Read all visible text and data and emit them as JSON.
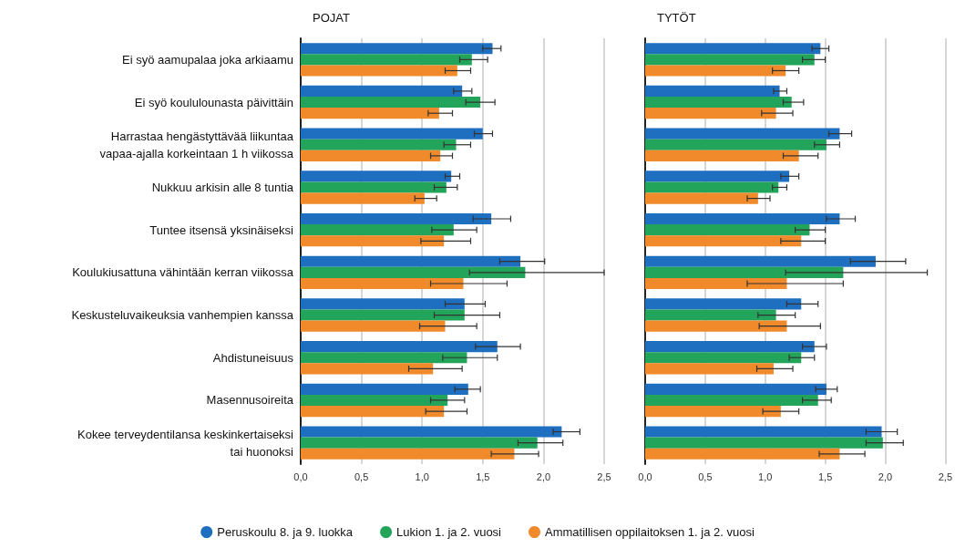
{
  "chart_data": [
    {
      "type": "bar",
      "orientation": "horizontal",
      "title": "POJAT",
      "categories": [
        "Ei syö aamupalaa joka arkiaamu",
        "Ei syö koululounasta päivittäin",
        "Harrastaa hengästyttävää liikuntaa\nvapaa-ajalla korkeintaan 1 h viikossa",
        "Nukkuu arkisin alle 8 tuntia",
        "Tuntee itsensä yksinäiseksi",
        "Koulukiusattuna vähintään kerran viikossa",
        "Keskusteluvaikeuksia vanhempien kanssa",
        "Ahdistuneisuus",
        "Masennusoireita",
        "Kokee terveydentilansa keskinkertaiseksi\ntai huonoksi"
      ],
      "series": [
        {
          "name": "Peruskoulu 8. ja 9. luokka",
          "color": "#1f6fc0",
          "values": [
            1.58,
            1.33,
            1.5,
            1.24,
            1.57,
            1.81,
            1.35,
            1.62,
            1.38,
            2.15
          ],
          "errors": [
            [
              1.5,
              1.65
            ],
            [
              1.26,
              1.41
            ],
            [
              1.43,
              1.58
            ],
            [
              1.19,
              1.31
            ],
            [
              1.42,
              1.73
            ],
            [
              1.64,
              2.01
            ],
            [
              1.19,
              1.52
            ],
            [
              1.44,
              1.81
            ],
            [
              1.27,
              1.48
            ],
            [
              2.08,
              2.3
            ]
          ]
        },
        {
          "name": "Lukion 1. ja 2. vuosi",
          "color": "#22a55a",
          "values": [
            1.41,
            1.48,
            1.28,
            1.2,
            1.26,
            1.85,
            1.35,
            1.37,
            1.21,
            1.95
          ],
          "errors": [
            [
              1.31,
              1.54
            ],
            [
              1.36,
              1.6
            ],
            [
              1.18,
              1.4
            ],
            [
              1.1,
              1.29
            ],
            [
              1.08,
              1.45
            ],
            [
              1.39,
              2.5
            ],
            [
              1.1,
              1.64
            ],
            [
              1.17,
              1.62
            ],
            [
              1.07,
              1.35
            ],
            [
              1.79,
              2.16
            ]
          ]
        },
        {
          "name": "Ammatillisen oppilaitoksen 1. ja 2. vuosi",
          "color": "#f08a2a",
          "values": [
            1.29,
            1.14,
            1.15,
            1.02,
            1.18,
            1.34,
            1.19,
            1.09,
            1.18,
            1.76
          ],
          "errors": [
            [
              1.19,
              1.4
            ],
            [
              1.05,
              1.25
            ],
            [
              1.07,
              1.25
            ],
            [
              0.94,
              1.12
            ],
            [
              0.99,
              1.4
            ],
            [
              1.07,
              1.7
            ],
            [
              0.98,
              1.45
            ],
            [
              0.89,
              1.33
            ],
            [
              1.03,
              1.37
            ],
            [
              1.57,
              1.96
            ]
          ]
        }
      ],
      "xlim": [
        0,
        2.5
      ],
      "xticks": [
        {
          "value": 0,
          "label": "0,0"
        },
        {
          "value": 0.5,
          "label": "0,5"
        },
        {
          "value": 1,
          "label": "1,0"
        },
        {
          "value": 1.5,
          "label": "1,5"
        },
        {
          "value": 2,
          "label": "2,0"
        },
        {
          "value": 2.5,
          "label": "2,5"
        }
      ],
      "grid": "x",
      "legend": "bottom"
    },
    {
      "type": "bar",
      "orientation": "horizontal",
      "title": "TYTÖT",
      "categories": [
        null,
        null,
        null,
        null,
        null,
        null,
        null,
        null,
        null,
        null
      ],
      "series": [
        {
          "color": "#1f6fc0",
          "values": [
            1.46,
            1.12,
            1.62,
            1.2,
            1.62,
            1.92,
            1.3,
            1.41,
            1.51,
            1.97
          ],
          "errors": [
            [
              1.39,
              1.53
            ],
            [
              1.07,
              1.18
            ],
            [
              1.53,
              1.72
            ],
            [
              1.13,
              1.28
            ],
            [
              1.51,
              1.75
            ],
            [
              1.71,
              2.17
            ],
            [
              1.18,
              1.44
            ],
            [
              1.31,
              1.51
            ],
            [
              1.42,
              1.6
            ],
            [
              1.84,
              2.1
            ]
          ]
        },
        {
          "color": "#22a55a",
          "values": [
            1.41,
            1.22,
            1.51,
            1.11,
            1.37,
            1.65,
            1.09,
            1.3,
            1.44,
            1.98
          ],
          "errors": [
            [
              1.31,
              1.5
            ],
            [
              1.15,
              1.32
            ],
            [
              1.41,
              1.62
            ],
            [
              1.06,
              1.18
            ],
            [
              1.25,
              1.5
            ],
            [
              1.17,
              2.35
            ],
            [
              0.94,
              1.25
            ],
            [
              1.2,
              1.41
            ],
            [
              1.31,
              1.55
            ],
            [
              1.84,
              2.15
            ]
          ]
        },
        {
          "color": "#f08a2a",
          "values": [
            1.17,
            1.09,
            1.28,
            0.94,
            1.3,
            1.18,
            1.18,
            1.07,
            1.13,
            1.62
          ],
          "errors": [
            [
              1.06,
              1.28
            ],
            [
              0.97,
              1.23
            ],
            [
              1.15,
              1.44
            ],
            [
              0.85,
              1.04
            ],
            [
              1.13,
              1.5
            ],
            [
              0.85,
              1.65
            ],
            [
              0.95,
              1.46
            ],
            [
              0.93,
              1.23
            ],
            [
              0.98,
              1.28
            ],
            [
              1.45,
              1.83
            ]
          ]
        }
      ],
      "xlim": [
        0,
        2.5
      ],
      "xticks": [
        {
          "value": 0,
          "label": "0,0"
        },
        {
          "value": 0.5,
          "label": "0,5"
        },
        {
          "value": 1,
          "label": "1,0"
        },
        {
          "value": 1.5,
          "label": "1,5"
        },
        {
          "value": 2,
          "label": "2,0"
        },
        {
          "value": 2.5,
          "label": "2,5"
        }
      ],
      "grid": "x",
      "tick_labels": "x"
    }
  ]
}
